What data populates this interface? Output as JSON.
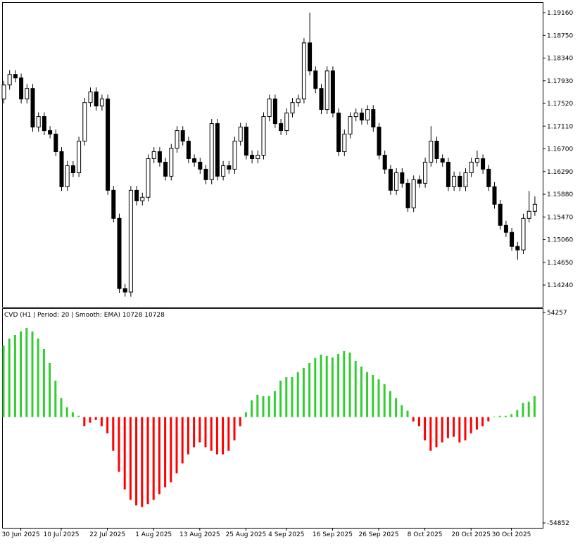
{
  "chart_data": [
    {
      "type": "candlestick",
      "categories": [
        null,
        null,
        null,
        "30 Jun 2025",
        null,
        null,
        null,
        null,
        null,
        null,
        "10 Jul 2025",
        null,
        null,
        null,
        null,
        null,
        null,
        null,
        "22 Jul 2025",
        null,
        null,
        null,
        null,
        null,
        null,
        null,
        "1 Aug 2025",
        null,
        null,
        null,
        null,
        null,
        null,
        null,
        "13 Aug 2025",
        null,
        null,
        null,
        null,
        null,
        null,
        null,
        "25 Aug 2025",
        null,
        null,
        null,
        null,
        null,
        null,
        "4 Sep 2025",
        null,
        null,
        null,
        null,
        null,
        null,
        null,
        "16 Sep 2025",
        null,
        null,
        null,
        null,
        null,
        null,
        null,
        "26 Sep 2025",
        null,
        null,
        null,
        null,
        null,
        null,
        null,
        "8 Oct 2025",
        null,
        null,
        null,
        null,
        null,
        null,
        null,
        "20 Oct 2025",
        null,
        null,
        null,
        null,
        null,
        null,
        "30 Oct 2025",
        null,
        null,
        null,
        null
      ],
      "open": [
        1.176,
        1.17854,
        1.18045,
        1.17981,
        1.17601,
        1.17791,
        1.17094,
        1.17284,
        1.1703,
        1.16967,
        1.1665,
        1.16016,
        1.16396,
        1.16269,
        1.1684,
        1.17537,
        1.17728,
        1.17474,
        1.17601,
        1.15952,
        1.15445,
        1.14177,
        1.14114,
        1.15952,
        1.15762,
        1.15826,
        1.16523,
        1.1665,
        1.1646,
        1.16206,
        1.16713,
        1.1703,
        1.1684,
        1.16523,
        1.1646,
        1.16333,
        1.16143,
        1.17157,
        1.16206,
        1.16396,
        1.16333,
        1.1684,
        1.17094,
        1.16586,
        1.16523,
        1.16586,
        1.17284,
        1.17601,
        1.17157,
        1.1703,
        1.17347,
        1.17537,
        1.17601,
        1.18615,
        1.18108,
        1.17791,
        1.17411,
        1.18108,
        1.17347,
        1.1665,
        1.16967,
        1.17284,
        1.17347,
        1.1722,
        1.17411,
        1.17094,
        1.16586,
        1.16333,
        1.15952,
        1.16269,
        1.16079,
        1.15635,
        1.16143,
        1.16079,
        1.1646,
        1.1684,
        1.16523,
        1.1646,
        1.16016,
        1.16206,
        1.16016,
        1.16269,
        1.1646,
        1.16523,
        1.16333,
        1.16016,
        1.15699,
        1.15318,
        1.15192,
        1.14938,
        1.14875,
        1.15445,
        1.15572
      ],
      "high": [
        1.1793,
        1.1812,
        1.1812,
        1.1806,
        1.1787,
        1.1787,
        1.1736,
        1.1736,
        1.1711,
        1.1705,
        1.1673,
        1.1648,
        1.1648,
        1.1692,
        1.1762,
        1.1781,
        1.1781,
        1.1768,
        1.1768,
        1.1603,
        1.1553,
        1.1426,
        1.1603,
        1.1603,
        1.1591,
        1.166,
        1.1673,
        1.1673,
        1.1654,
        1.1679,
        1.1711,
        1.1711,
        1.1692,
        1.166,
        1.1654,
        1.1641,
        1.1724,
        1.1724,
        1.1648,
        1.1648,
        1.1692,
        1.1717,
        1.1717,
        1.1667,
        1.1667,
        1.1736,
        1.1768,
        1.1768,
        1.1724,
        1.1743,
        1.1762,
        1.1768,
        1.187,
        1.1916,
        1.1819,
        1.1787,
        1.1819,
        1.1819,
        1.1743,
        1.1705,
        1.1736,
        1.1743,
        1.1743,
        1.1749,
        1.1749,
        1.1717,
        1.1667,
        1.1641,
        1.1635,
        1.1635,
        1.1616,
        1.1622,
        1.1622,
        1.1654,
        1.1711,
        1.1692,
        1.166,
        1.1654,
        1.1629,
        1.1629,
        1.1635,
        1.1654,
        1.1667,
        1.166,
        1.1641,
        1.161,
        1.1578,
        1.154,
        1.1527,
        1.1502,
        1.1553,
        1.1594,
        1.1584
      ],
      "low": [
        1.1752,
        1.1777,
        1.179,
        1.1752,
        1.1752,
        1.1701,
        1.1701,
        1.1695,
        1.1689,
        1.1657,
        1.1594,
        1.1594,
        1.1619,
        1.1619,
        1.1676,
        1.1746,
        1.1739,
        1.1739,
        1.1587,
        1.1537,
        1.141,
        1.1403,
        1.1403,
        1.1568,
        1.1568,
        1.1575,
        1.1644,
        1.1638,
        1.1613,
        1.1613,
        1.1663,
        1.1676,
        1.1644,
        1.1638,
        1.1625,
        1.1606,
        1.1606,
        1.1613,
        1.1613,
        1.1625,
        1.1625,
        1.1676,
        1.1651,
        1.1644,
        1.1644,
        1.1651,
        1.172,
        1.1708,
        1.1695,
        1.1695,
        1.1727,
        1.1746,
        1.1752,
        1.1803,
        1.1771,
        1.1733,
        1.1733,
        1.1727,
        1.1657,
        1.1657,
        1.1689,
        1.172,
        1.1714,
        1.1714,
        1.1701,
        1.1651,
        1.1625,
        1.1587,
        1.1587,
        1.16,
        1.1556,
        1.1556,
        1.16,
        1.16,
        1.1638,
        1.1644,
        1.1638,
        1.1594,
        1.1594,
        1.1594,
        1.1594,
        1.1619,
        1.1638,
        1.1625,
        1.1594,
        1.1562,
        1.1524,
        1.1511,
        1.1486,
        1.147,
        1.148,
        1.1537,
        1.1549
      ],
      "close": [
        1.17854,
        1.18045,
        1.17981,
        1.17601,
        1.17791,
        1.17094,
        1.17284,
        1.1703,
        1.16967,
        1.1665,
        1.16016,
        1.16396,
        1.16269,
        1.1684,
        1.17537,
        1.17728,
        1.17474,
        1.17601,
        1.15952,
        1.15445,
        1.14177,
        1.14114,
        1.15952,
        1.15762,
        1.15826,
        1.16523,
        1.1665,
        1.1646,
        1.16206,
        1.16713,
        1.1703,
        1.1684,
        1.16523,
        1.1646,
        1.16333,
        1.16143,
        1.17157,
        1.16206,
        1.16396,
        1.16333,
        1.1684,
        1.17094,
        1.16586,
        1.16523,
        1.16586,
        1.17284,
        1.17601,
        1.17157,
        1.1703,
        1.17347,
        1.17537,
        1.17601,
        1.18615,
        1.18108,
        1.17791,
        1.17411,
        1.18108,
        1.17347,
        1.1665,
        1.16967,
        1.17284,
        1.17347,
        1.1722,
        1.17411,
        1.17094,
        1.16586,
        1.16333,
        1.15952,
        1.16269,
        1.16079,
        1.15635,
        1.16143,
        1.16079,
        1.1646,
        1.1684,
        1.16523,
        1.1646,
        1.16016,
        1.16206,
        1.16016,
        1.16269,
        1.1646,
        1.16523,
        1.16333,
        1.16016,
        1.15699,
        1.15318,
        1.15192,
        1.14938,
        1.14875,
        1.15445,
        1.15572,
        1.15699
      ],
      "up_color": "#ffffff",
      "down_color": "#000000",
      "ylim": [
        1.13847,
        1.19338
      ],
      "yticks": [
        {
          "value": 1.1916,
          "label": "1.19160"
        },
        {
          "value": 1.1875,
          "label": "1.18750"
        },
        {
          "value": 1.1834,
          "label": "1.18340"
        },
        {
          "value": 1.1793,
          "label": "1.17930"
        },
        {
          "value": 1.1752,
          "label": "1.17520"
        },
        {
          "value": 1.1711,
          "label": "1.17110"
        },
        {
          "value": 1.167,
          "label": "1.16700"
        },
        {
          "value": 1.1629,
          "label": "1.16290"
        },
        {
          "value": 1.1588,
          "label": "1.15880"
        },
        {
          "value": 1.1547,
          "label": "1.15470"
        },
        {
          "value": 1.1506,
          "label": "1.15060"
        },
        {
          "value": 1.1465,
          "label": "1.14650"
        },
        {
          "value": 1.1424,
          "label": "1.14240"
        }
      ]
    },
    {
      "type": "bar",
      "title": "CVD (H1 | Period: 20 | Smooth: EMA) 10728 10728",
      "values": [
        37100,
        40700,
        42600,
        44400,
        46200,
        44400,
        40700,
        35300,
        28000,
        18900,
        9800,
        5100,
        2500,
        700,
        -4700,
        -2900,
        -1500,
        -4700,
        -8400,
        -17500,
        -28400,
        -37500,
        -42900,
        -45800,
        -46600,
        -45100,
        -42900,
        -40000,
        -36400,
        -33800,
        -29100,
        -24000,
        -19300,
        -15600,
        -13100,
        -15600,
        -17500,
        -19300,
        -19300,
        -17500,
        -12000,
        -4700,
        2500,
        8700,
        11600,
        10900,
        10900,
        13500,
        18900,
        20700,
        20700,
        23300,
        25500,
        28000,
        30600,
        32400,
        31700,
        30900,
        32700,
        34200,
        33500,
        29100,
        26200,
        23300,
        21800,
        19600,
        17100,
        13500,
        9800,
        6200,
        3300,
        -2200,
        -4700,
        -12000,
        -17500,
        -15600,
        -13100,
        -10900,
        -10200,
        -13100,
        -12000,
        -8400,
        -6500,
        -4700,
        -2200,
        300,
        700,
        700,
        1500,
        3600,
        7300,
        8000,
        10900
      ],
      "positive_color": "#32cd32",
      "negative_color": "#ff0000",
      "ylim": [
        -57398,
        56075
      ],
      "yticks": [
        54257,
        -54852
      ]
    }
  ]
}
